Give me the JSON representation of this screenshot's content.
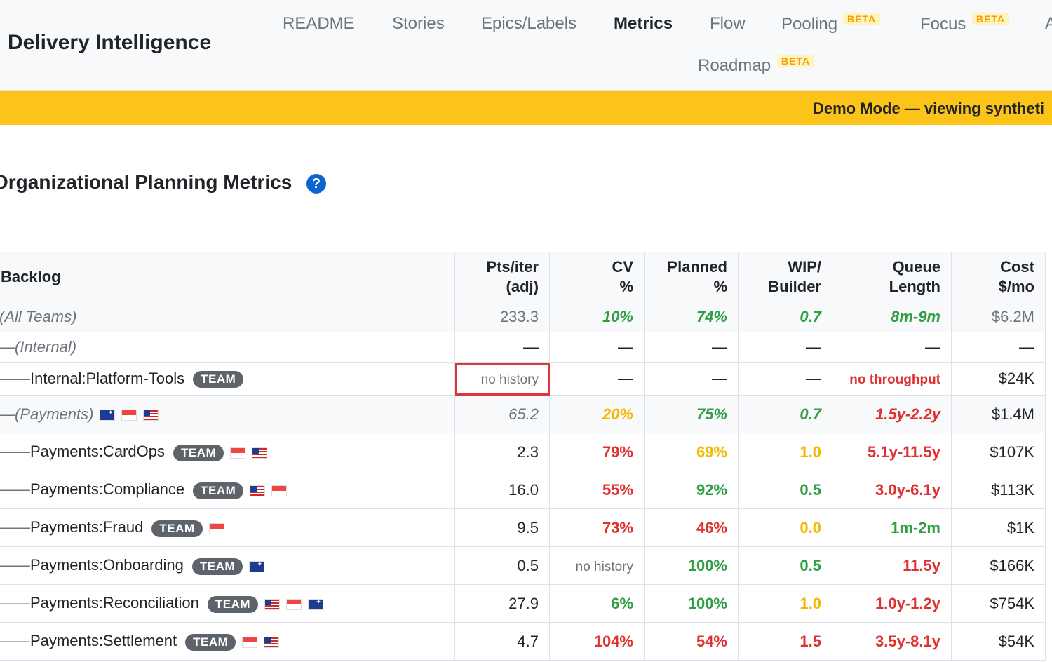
{
  "header": {
    "brand": "Delivery Intelligence",
    "nav": [
      {
        "label": "README",
        "active": false
      },
      {
        "label": "Stories",
        "active": false
      },
      {
        "label": "Epics/Labels",
        "active": false
      },
      {
        "label": "Metrics",
        "active": true
      },
      {
        "label": "Flow",
        "active": false
      },
      {
        "label": "Pooling",
        "badge": "BETA",
        "active": false
      },
      {
        "label": "Focus",
        "badge": "BETA",
        "active": false
      },
      {
        "label": "Roadmap",
        "badge": "BETA",
        "active": false
      }
    ]
  },
  "banner": {
    "text": "Demo Mode — viewing syntheti"
  },
  "page": {
    "title": "Organizational Planning Metrics",
    "help_icon": "?"
  },
  "colors": {
    "banner": "#fcc419",
    "green": "#2f9e44",
    "yellow": "#f5b800",
    "red": "#e03131",
    "badge": "#5c636a"
  },
  "table": {
    "headers": {
      "backlog": "Backlog",
      "pts_l1": "Pts/iter",
      "pts_l2": "(adj)",
      "cv_l1": "CV",
      "cv_l2": "%",
      "planned_l1": "Planned",
      "planned_l2": "%",
      "wip_l1": "WIP/",
      "wip_l2": "Builder",
      "queue_l1": "Queue",
      "queue_l2": "Length",
      "cost_l1": "Cost",
      "cost_l2": "$/mo"
    },
    "team_badge": "TEAM",
    "rows": {
      "all": {
        "name": "(All Teams)",
        "pts": "233.3",
        "cv": "10%",
        "planned": "74%",
        "wip": "0.7",
        "queue": "8m-9m",
        "cost": "$6.2M"
      },
      "internal_grp": {
        "name": "—(Internal)",
        "pts": "—",
        "cv": "—",
        "planned": "—",
        "wip": "—",
        "queue": "—",
        "cost": "—"
      },
      "platform_tools": {
        "prefix": "——",
        "name": "Internal:Platform-Tools",
        "pts": "no history",
        "cv": "—",
        "planned": "—",
        "wip": "—",
        "queue": "no throughput",
        "cost": "$24K"
      },
      "payments_grp": {
        "name": "—(Payments)",
        "pts": "65.2",
        "cv": "20%",
        "planned": "75%",
        "wip": "0.7",
        "queue": "1.5y-2.2y",
        "cost": "$1.4M"
      },
      "cardops": {
        "prefix": "——",
        "name": "Payments:CardOps",
        "pts": "2.3",
        "cv": "79%",
        "planned": "69%",
        "wip": "1.0",
        "queue": "5.1y-11.5y",
        "cost": "$107K"
      },
      "compliance": {
        "prefix": "——",
        "name": "Payments:Compliance",
        "pts": "16.0",
        "cv": "55%",
        "planned": "92%",
        "wip": "0.5",
        "queue": "3.0y-6.1y",
        "cost": "$113K"
      },
      "fraud": {
        "prefix": "——",
        "name": "Payments:Fraud",
        "pts": "9.5",
        "cv": "73%",
        "planned": "46%",
        "wip": "0.0",
        "queue": "1m-2m",
        "cost": "$1K"
      },
      "onboarding": {
        "prefix": "——",
        "name": "Payments:Onboarding",
        "pts": "0.5",
        "cv": "no history",
        "planned": "100%",
        "wip": "0.5",
        "queue": "11.5y",
        "cost": "$166K"
      },
      "reconciliation": {
        "prefix": "——",
        "name": "Payments:Reconciliation",
        "pts": "27.9",
        "cv": "6%",
        "planned": "100%",
        "wip": "1.0",
        "queue": "1.0y-1.2y",
        "cost": "$754K"
      },
      "settlement": {
        "prefix": "——",
        "name": "Payments:Settlement",
        "pts": "4.7",
        "cv": "104%",
        "planned": "54%",
        "wip": "1.5",
        "queue": "3.5y-8.1y",
        "cost": "$54K"
      }
    }
  }
}
